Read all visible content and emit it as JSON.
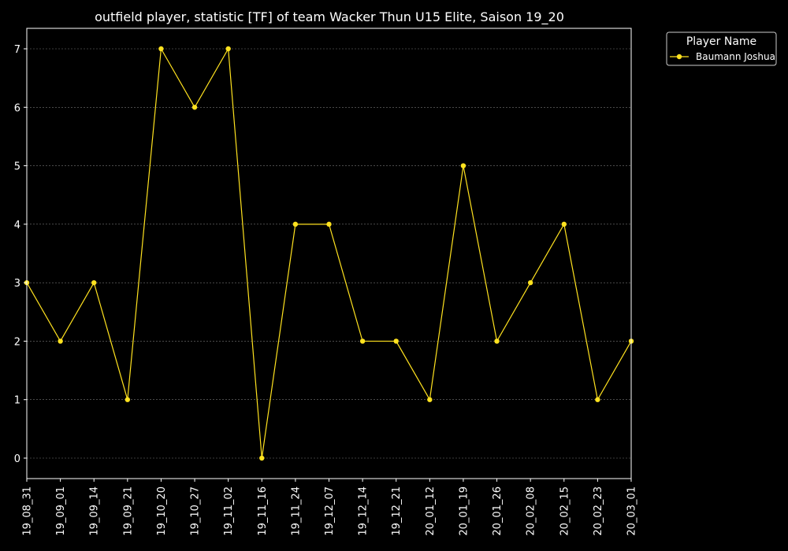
{
  "chart_data": {
    "type": "line",
    "title": "outfield player, statistic [TF] of team Wacker Thun U15 Elite, Saison 19_20",
    "xlabel": "",
    "ylabel": "",
    "categories": [
      "19_08_31",
      "19_09_01",
      "19_09_14",
      "19_09_21",
      "19_10_20",
      "19_10_27",
      "19_11_02",
      "19_11_16",
      "19_11_24",
      "19_12_07",
      "19_12_14",
      "19_12_21",
      "20_01_12",
      "20_01_19",
      "20_01_26",
      "20_02_08",
      "20_02_15",
      "20_02_23",
      "20_03_01"
    ],
    "series": [
      {
        "name": "Baumann Joshua",
        "values": [
          3,
          2,
          3,
          1,
          7,
          6,
          7,
          0,
          4,
          4,
          2,
          2,
          1,
          5,
          2,
          3,
          4,
          1,
          2
        ],
        "color": "#ffe21f"
      }
    ],
    "ylim": [
      -0.35,
      7.35
    ],
    "yticks": [
      0,
      1,
      2,
      3,
      4,
      5,
      6,
      7
    ],
    "grid": true,
    "legend": {
      "title": "Player Name",
      "position": "outside-top-right"
    },
    "colors": {
      "background": "#000000",
      "axes": "#ffffff",
      "grid": "#777777",
      "line": "#ffe21f"
    }
  }
}
